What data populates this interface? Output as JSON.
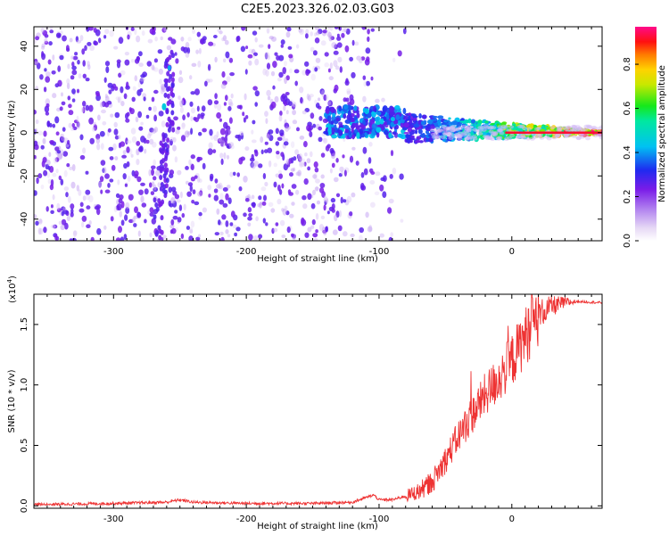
{
  "title": "C2E5.2023.326.02.03.G03",
  "chart_data": [
    {
      "type": "heatmap",
      "title": "C2E5.2023.326.02.03.G03",
      "xlabel": "Height of straight line (km)",
      "ylabel": "Frequency (Hz)",
      "xlim": [
        -360,
        68
      ],
      "ylim": [
        -50,
        49
      ],
      "xticks": [
        -300,
        -200,
        -100,
        0
      ],
      "yticks": [
        -40,
        -20,
        0,
        20,
        40
      ],
      "xtick_labels": [
        "-300",
        "-200",
        "-100",
        "0"
      ],
      "ytick_labels": [
        "-40",
        "-20",
        "0",
        "20",
        "40"
      ],
      "colorbar": {
        "label": "Normalized spectral amplitude",
        "range": [
          0,
          0.97
        ],
        "ticks": [
          0.0,
          0.2,
          0.4,
          0.6,
          0.8
        ],
        "tick_labels": [
          "0.0",
          "0.2",
          "0.4",
          "0.6",
          "0.8"
        ],
        "colormap": "rainbow (white-lavender-purple-blue-cyan-green-yellow-orange-red-magenta)"
      },
      "features": [
        {
          "description": "broadband noise, low amplitude",
          "x_range": [
            -360,
            -140
          ],
          "amplitude": 0.1
        },
        {
          "description": "vertical bright streak",
          "x": -262,
          "y_range": [
            -50,
            40
          ],
          "amplitude": 0.2
        },
        {
          "description": "narrowband signal emerging",
          "x_range": [
            -140,
            -80
          ],
          "center_hz": 5,
          "amplitude": 0.35
        },
        {
          "description": "signal converging to carrier",
          "x_range": [
            -80,
            68
          ],
          "center_hz": 0,
          "amplitude": 0.9
        }
      ]
    },
    {
      "type": "line",
      "xlabel": "Height of straight line (km)",
      "ylabel": "SNR (10 * v/v)",
      "y_scale_note": "(x10",
      "y_scale_exp": "4",
      "y_scale_close": ")",
      "xlim": [
        -360,
        68
      ],
      "ylim": [
        -0.02,
        1.75
      ],
      "xticks": [
        -300,
        -200,
        -100,
        0
      ],
      "yticks": [
        0.0,
        0.5,
        1.0,
        1.5
      ],
      "xtick_labels": [
        "-300",
        "-200",
        "-100",
        "0"
      ],
      "ytick_labels": [
        "0.0",
        "0.5",
        "1.0",
        "1.5"
      ],
      "series": [
        {
          "name": "SNR",
          "color": "#ee3333",
          "points": [
            [
              -360,
              0.01
            ],
            [
              -300,
              0.02
            ],
            [
              -260,
              0.03
            ],
            [
              -250,
              0.05
            ],
            [
              -240,
              0.03
            ],
            [
              -200,
              0.02
            ],
            [
              -150,
              0.02
            ],
            [
              -120,
              0.03
            ],
            [
              -104,
              0.09
            ],
            [
              -100,
              0.05
            ],
            [
              -90,
              0.05
            ],
            [
              -80,
              0.08
            ],
            [
              -70,
              0.12
            ],
            [
              -60,
              0.2
            ],
            [
              -50,
              0.38
            ],
            [
              -40,
              0.58
            ],
            [
              -30,
              0.75
            ],
            [
              -20,
              0.92
            ],
            [
              -10,
              1.05
            ],
            [
              0,
              1.2
            ],
            [
              10,
              1.4
            ],
            [
              20,
              1.58
            ],
            [
              30,
              1.65
            ],
            [
              40,
              1.68
            ],
            [
              50,
              1.69
            ],
            [
              68,
              1.68
            ]
          ]
        }
      ]
    }
  ]
}
